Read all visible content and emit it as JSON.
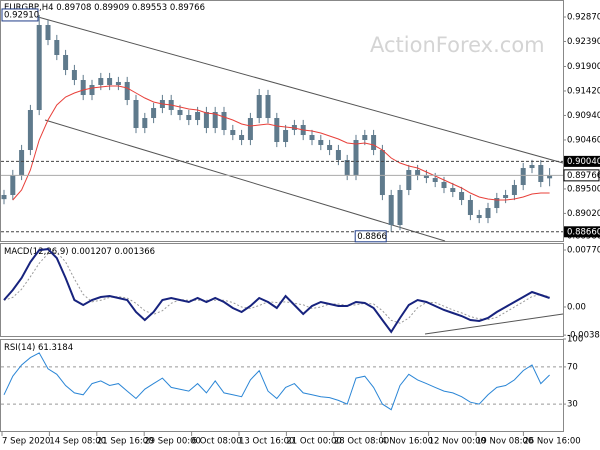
{
  "chart_data": {
    "type": "candlestick",
    "symbol": "EURGBP,H4",
    "ohlc_header": [
      0.89708,
      0.89909,
      0.89553,
      0.89766
    ],
    "watermark": "ActionForex.com",
    "x_labels": [
      "7 Sep 2020",
      "14 Sep 08:00",
      "21 Sep 16:00",
      "29 Sep 00:00",
      "6 Oct 08:00",
      "13 Oct 16:00",
      "21 Oct 00:00",
      "28 Oct 08:00",
      "4 Nov 16:00",
      "12 Nov 00:00",
      "19 Nov 08:00",
      "26 Nov 16:00"
    ],
    "open": [
      0.893,
      0.89381,
      0.89773,
      0.90263,
      0.91047,
      0.92713,
      0.92419,
      0.92125,
      0.91831,
      0.91635,
      0.91341,
      0.91537,
      0.91674,
      0.91537,
      0.91596,
      0.91243,
      0.90694,
      0.9089,
      0.91086,
      0.91243,
      0.91047,
      0.90949,
      0.90851,
      0.91008,
      0.90694,
      0.91008,
      0.90655,
      0.90557,
      0.90459,
      0.9089,
      0.91341,
      0.9089,
      0.9042,
      0.90655,
      0.90753,
      0.90557,
      0.90459,
      0.90361,
      0.90263,
      0.90067,
      0.89773,
      0.90459,
      0.90557,
      0.90263,
      0.89381,
      0.88793,
      0.89479,
      0.89871,
      0.89773,
      0.89714,
      0.89636,
      0.89518,
      0.8944,
      0.89283,
      0.88989,
      0.8893,
      0.89126,
      0.89322,
      0.89381,
      0.89577,
      0.8991,
      0.89969,
      0.89708
    ],
    "high": [
      0.89481,
      0.89873,
      0.90363,
      0.91147,
      0.9291,
      0.92813,
      0.92519,
      0.92225,
      0.91931,
      0.91735,
      0.91637,
      0.91774,
      0.91774,
      0.91696,
      0.91696,
      0.91343,
      0.9099,
      0.91186,
      0.91343,
      0.91343,
      0.91147,
      0.91049,
      0.91108,
      0.91108,
      0.91108,
      0.91108,
      0.90755,
      0.90657,
      0.9099,
      0.9146,
      0.91441,
      0.9099,
      0.90755,
      0.90853,
      0.90853,
      0.90657,
      0.90559,
      0.90461,
      0.90363,
      0.90167,
      0.90559,
      0.90657,
      0.90657,
      0.90363,
      0.89481,
      0.89579,
      0.89971,
      0.89971,
      0.89873,
      0.89814,
      0.89736,
      0.89618,
      0.8954,
      0.89383,
      0.89089,
      0.89226,
      0.89422,
      0.89481,
      0.89677,
      0.9001,
      0.90069,
      0.90069,
      0.89909
    ],
    "low": [
      0.892,
      0.89281,
      0.89673,
      0.90163,
      0.90947,
      0.92319,
      0.92025,
      0.91731,
      0.91535,
      0.91241,
      0.91241,
      0.91437,
      0.91437,
      0.91437,
      0.91143,
      0.90594,
      0.90594,
      0.9079,
      0.90986,
      0.90947,
      0.90849,
      0.90751,
      0.90751,
      0.90594,
      0.90594,
      0.90555,
      0.90457,
      0.90359,
      0.90359,
      0.9079,
      0.9079,
      0.9032,
      0.9032,
      0.90555,
      0.90457,
      0.90359,
      0.90261,
      0.90163,
      0.89967,
      0.89673,
      0.89673,
      0.90359,
      0.90163,
      0.89281,
      0.8866,
      0.88693,
      0.89379,
      0.89673,
      0.89614,
      0.89536,
      0.89418,
      0.8934,
      0.89183,
      0.88889,
      0.8883,
      0.8883,
      0.89026,
      0.89222,
      0.89281,
      0.89477,
      0.8981,
      0.89536,
      0.89553
    ],
    "close": [
      0.89381,
      0.89773,
      0.90263,
      0.91047,
      0.92713,
      0.92419,
      0.92125,
      0.91831,
      0.91635,
      0.91341,
      0.91537,
      0.91674,
      0.91537,
      0.91596,
      0.91243,
      0.90694,
      0.9089,
      0.91086,
      0.91243,
      0.91047,
      0.90949,
      0.90851,
      0.91008,
      0.90694,
      0.91008,
      0.90655,
      0.90557,
      0.90459,
      0.9089,
      0.91341,
      0.9089,
      0.9042,
      0.90655,
      0.90753,
      0.90557,
      0.90459,
      0.90361,
      0.90263,
      0.90067,
      0.89773,
      0.90459,
      0.90557,
      0.90263,
      0.89381,
      0.88793,
      0.89479,
      0.89871,
      0.89773,
      0.89714,
      0.89636,
      0.89518,
      0.8944,
      0.89283,
      0.88989,
      0.8893,
      0.89126,
      0.89322,
      0.89381,
      0.89577,
      0.8991,
      0.89969,
      0.89636,
      0.89766
    ],
    "candle_color": "#5f7a8c",
    "ma": {
      "color": "#e8403a",
      "values": [
        null,
        0.89283,
        0.89479,
        0.89871,
        0.90459,
        0.90851,
        0.91145,
        0.91302,
        0.9138,
        0.91439,
        0.91478,
        0.91498,
        0.91518,
        0.91518,
        0.91478,
        0.9138,
        0.91282,
        0.91204,
        0.91165,
        0.91145,
        0.91106,
        0.91067,
        0.91047,
        0.90988,
        0.90969,
        0.9091,
        0.90851,
        0.90773,
        0.90734,
        0.90753,
        0.90773,
        0.90734,
        0.90714,
        0.90694,
        0.90655,
        0.90636,
        0.90596,
        0.90538,
        0.90479,
        0.904,
        0.90381,
        0.904,
        0.90361,
        0.90263,
        0.90106,
        0.90008,
        0.8995,
        0.8991,
        0.89832,
        0.89754,
        0.89675,
        0.89597,
        0.89518,
        0.8942,
        0.89342,
        0.89303,
        0.89283,
        0.89283,
        0.89303,
        0.89342,
        0.89401,
        0.8942,
        0.8942
      ]
    },
    "ylim": [
      0.8846,
      0.93203
    ],
    "yticks": [
      {
        "value": 0.9287,
        "label": "0.92870"
      },
      {
        "value": 0.9239,
        "label": "0.92390"
      },
      {
        "value": 0.919,
        "label": "0.91900"
      },
      {
        "value": 0.9142,
        "label": "0.91420"
      },
      {
        "value": 0.9094,
        "label": "0.90940"
      },
      {
        "value": 0.9046,
        "label": "0.90460"
      },
      {
        "value": 0.895,
        "label": "0.89500"
      },
      {
        "value": 0.8902,
        "label": "0.89020"
      },
      {
        "value": 0.8858,
        "label": "0.88580"
      }
    ],
    "price_lines": [
      {
        "value": 0.9004,
        "label": "0.90040"
      },
      {
        "value": 0.8866,
        "label": "0.88660"
      }
    ],
    "last_price": 0.89766,
    "high_label": {
      "value": 0.9291,
      "label": "0.92910"
    },
    "low_label": 0.8866,
    "macd": {
      "name": "MACD(12,26,9)",
      "color": "#17237e",
      "values": [
        0.000945,
        0.002295,
        0.003915,
        0.006075,
        0.007695,
        0.00783,
        0.006615,
        0.003915,
        0.000945,
        0.00027,
        0.000945,
        0.00135,
        0.001485,
        0.001215,
        0.000945,
        -0.000675,
        -0.001755,
        -0.000675,
        0.000945,
        0.001215,
        0.000945,
        0.000675,
        0.001215,
        0.000675,
        0.001215,
        0.000675,
        -0.000135,
        -0.000675,
        0.000135,
        0.001215,
        0.000675,
        -0.000135,
        0.001485,
        0.00027,
        -0.000945,
        0.000135,
        0.000675,
        0.000405,
        0.000135,
        0.000135,
        0.000675,
        0.00054,
        -0.000135,
        -0.001755,
        -0.003375,
        -0.001485,
        0.00027,
        0.000945,
        0.000675,
        0.000135,
        -0.000405,
        -0.00081,
        -0.001215,
        -0.001755,
        -0.00189,
        -0.001485,
        -0.000675,
        0,
        0.000675,
        0.00135,
        0.002025,
        0.00162,
        0.001207
      ],
      "signal": {
        "color": "#9a9a9a",
        "values": [
          0.0009,
          0.0013,
          0.0024,
          0.0041,
          0.0059,
          0.0072,
          0.0074,
          0.0061,
          0.0038,
          0.0017,
          0.0007,
          0.0009,
          0.0013,
          0.0014,
          0.0012,
          0.0005,
          -0.0005,
          -0.001,
          -0.0005,
          0.0005,
          0.001,
          0.0009,
          0.0009,
          0.0009,
          0.0009,
          0.0009,
          0.0006,
          0,
          -0.0002,
          0.0002,
          0.0007,
          0.0006,
          0.0007,
          0.0005,
          0.0003,
          -0.0002,
          0,
          0.0004,
          0.0004,
          0.0002,
          0.0003,
          0.0005,
          0.0004,
          -0.0005,
          -0.0018,
          -0.0022,
          -0.0015,
          -0.0001,
          0.0006,
          0.0006,
          0.0001,
          -0.0004,
          -0.0008,
          -0.0013,
          -0.0016,
          -0.0017,
          -0.0014,
          -0.0007,
          0,
          0.0007,
          0.0014,
          0.0017,
          0.001366
        ]
      },
      "ylim": [
        -0.00406,
        0.00865
      ],
      "yticks": [
        0.007704,
        {
          "value": 0,
          "label": "0.00"
        },
        -0.003804
      ]
    },
    "rsi": {
      "name": "RSI(14)",
      "color": "#2b86d6",
      "values": [
        40,
        60,
        72,
        80,
        85,
        68,
        62,
        50,
        42,
        40,
        52,
        55,
        50,
        52,
        44,
        36,
        46,
        52,
        58,
        48,
        46,
        44,
        52,
        42,
        55,
        42,
        40,
        38,
        56,
        66,
        44,
        36,
        48,
        52,
        42,
        40,
        38,
        37,
        34,
        30,
        58,
        60,
        48,
        30,
        24,
        50,
        62,
        56,
        52,
        48,
        44,
        42,
        38,
        32,
        30,
        40,
        48,
        50,
        56,
        66,
        72,
        52,
        61.3184
      ],
      "ylim": [
        0,
        100
      ],
      "yticks": [
        100,
        70,
        30
      ],
      "levels": [
        70,
        30
      ]
    }
  }
}
